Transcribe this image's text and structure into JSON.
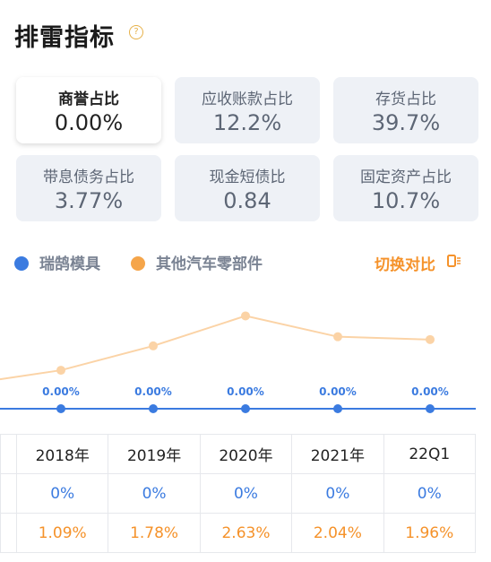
{
  "header": {
    "title": "排雷指标",
    "help_icon": "question-circle-icon"
  },
  "metric_cards": [
    {
      "label": "商誉占比",
      "value": "0.00%",
      "active": true
    },
    {
      "label": "应收账款占比",
      "value": "12.2%",
      "active": false
    },
    {
      "label": "存货占比",
      "value": "39.7%",
      "active": false
    },
    {
      "label": "带息债务占比",
      "value": "3.77%",
      "active": false
    },
    {
      "label": "现金短债比",
      "value": "0.84",
      "active": false
    },
    {
      "label": "固定资产占比",
      "value": "10.7%",
      "active": false
    }
  ],
  "legend": {
    "series_a": {
      "name": "瑞鹄模具",
      "color": "#3b7be0"
    },
    "series_b": {
      "name": "其他汽车零部件",
      "color": "#f5a54a"
    },
    "switch_label": "切换对比",
    "switch_icon": "switch-compare-icon"
  },
  "chart_data": {
    "type": "line",
    "x": [
      "2018年",
      "2019年",
      "2020年",
      "2021年",
      "22Q1"
    ],
    "series": [
      {
        "name": "瑞鹄模具",
        "values": [
          0,
          0,
          0,
          0,
          0
        ],
        "labels": [
          "0.00%",
          "0.00%",
          "0.00%",
          "0.00%",
          "0.00%"
        ],
        "color": "#3b7be0"
      },
      {
        "name": "其他汽车零部件",
        "values": [
          1.09,
          1.78,
          2.63,
          2.04,
          1.96
        ],
        "color": "#fbd3a6"
      }
    ],
    "ylim": [
      0,
      3.2
    ]
  },
  "table": {
    "header": [
      "",
      "2018年",
      "2019年",
      "2020年",
      "2021年",
      "22Q1"
    ],
    "rows": [
      [
        "",
        "0%",
        "0%",
        "0%",
        "0%",
        "0%"
      ],
      [
        "",
        "1.09%",
        "1.78%",
        "2.63%",
        "2.04%",
        "1.96%"
      ]
    ]
  }
}
